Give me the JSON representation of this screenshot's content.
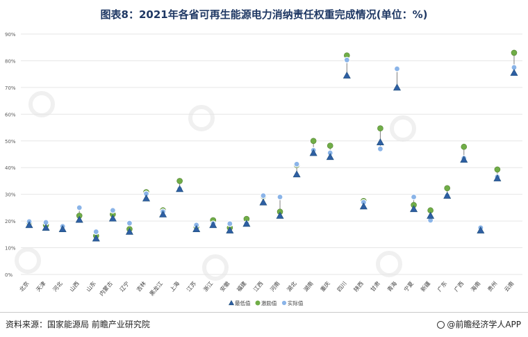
{
  "title": "图表8：2021年各省可再生能源电力消纳责任权重完成情况(单位：%)",
  "source": "资料来源：国家能源局 前瞻产业研究院",
  "brand": "@前瞻经济学人APP",
  "colors": {
    "min_marker": "#2e5fa3",
    "incentive_marker": "#70ad47",
    "actual_marker": "#8ab4e8",
    "grid": "#e6e6e6",
    "connector": "#7f7f7f"
  },
  "chart_data": {
    "type": "scatter",
    "categories": [
      "北京",
      "天津",
      "河北",
      "山西",
      "山东",
      "内蒙古",
      "辽宁",
      "吉林",
      "黑龙江",
      "上海",
      "江苏",
      "浙江",
      "安徽",
      "福建",
      "江西",
      "河南",
      "湖北",
      "湖南",
      "重庆",
      "四川",
      "陕西",
      "甘肃",
      "青海",
      "宁夏",
      "新疆",
      "广东",
      "广西",
      "海南",
      "贵州",
      "云南"
    ],
    "y_ticks": [
      "0%",
      "10%",
      "20%",
      "30%",
      "40%",
      "50%",
      "60%",
      "70%",
      "80%",
      "90%"
    ],
    "ylim": [
      0,
      90
    ],
    "grid": true,
    "legend_position": "bottom",
    "series": [
      {
        "name": "最低值",
        "marker": "triangle",
        "values": [
          18.5,
          17.5,
          17.0,
          20.5,
          13.5,
          21.0,
          16.0,
          28.5,
          22.5,
          32.0,
          17.0,
          18.5,
          16.5,
          19.0,
          27.0,
          22.0,
          37.5,
          45.5,
          44.0,
          74.5,
          25.5,
          49.5,
          70.0,
          24.5,
          22.0,
          29.5,
          43.0,
          16.5,
          36.0,
          75.5
        ]
      },
      {
        "name": "激励值",
        "marker": "circle",
        "values": [
          19.5,
          18.5,
          18.0,
          22.0,
          14.5,
          22.5,
          17.0,
          30.8,
          24.0,
          35.0,
          18.0,
          20.3,
          17.5,
          20.8,
          29.3,
          23.5,
          41.0,
          50.0,
          48.2,
          82.0,
          27.5,
          54.7,
          null,
          26.0,
          24.0,
          32.3,
          47.8,
          17.5,
          39.3,
          83.0
        ]
      },
      {
        "name": "实际值",
        "marker": "circle",
        "values": [
          19.8,
          19.5,
          18.0,
          25.0,
          16.0,
          24.0,
          19.2,
          30.2,
          23.5,
          32.0,
          18.5,
          19.0,
          19.0,
          19.0,
          29.5,
          29.0,
          41.3,
          46.5,
          45.5,
          80.3,
          27.0,
          47.0,
          77.0,
          29.0,
          20.3,
          29.5,
          43.5,
          17.5,
          36.5,
          77.5
        ]
      }
    ]
  }
}
